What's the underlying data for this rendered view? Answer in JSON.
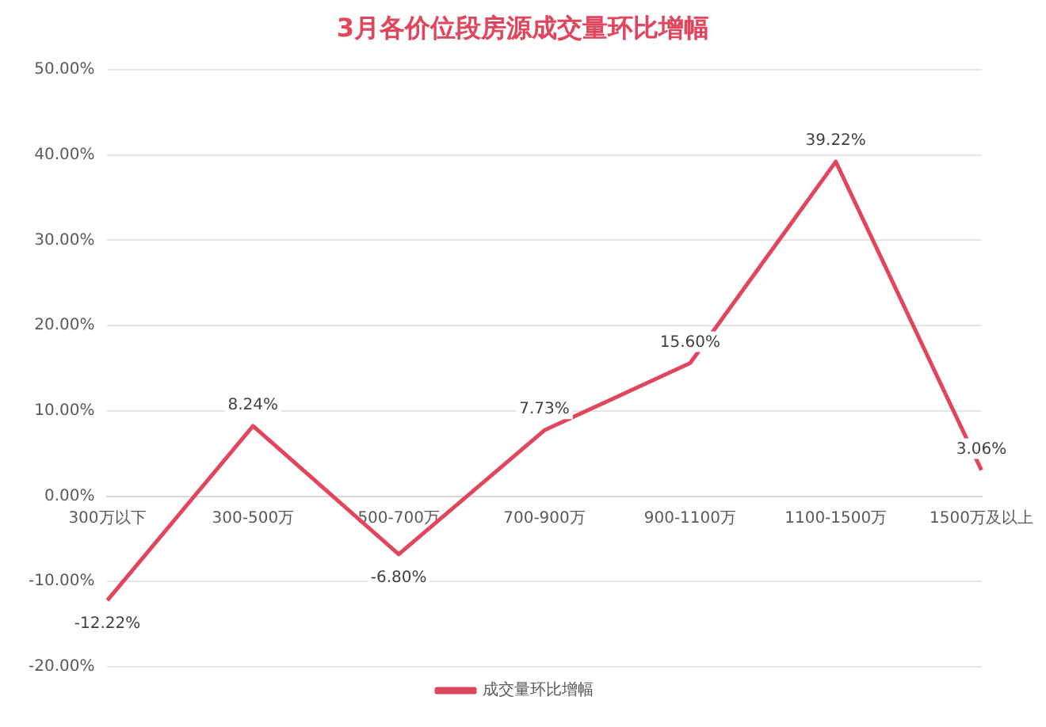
{
  "chart_data": {
    "type": "line",
    "title": "3月各价位段房源成交量环比增幅",
    "categories": [
      "300万以下",
      "300-500万",
      "500-700万",
      "700-900万",
      "900-1100万",
      "1100-1500万",
      "1500万及以上"
    ],
    "series": [
      {
        "name": "成交量环比增幅",
        "color": "#e0475e",
        "values": [
          -12.22,
          8.24,
          -6.8,
          7.73,
          15.6,
          39.22,
          3.06
        ],
        "value_labels": [
          "-12.22%",
          "8.24%",
          "-6.80%",
          "7.73%",
          "15.60%",
          "39.22%",
          "3.06%"
        ]
      }
    ],
    "ylim": [
      -20,
      50
    ],
    "yticks": [
      {
        "value": -20,
        "label": "-20.00%"
      },
      {
        "value": -10,
        "label": "-10.00%"
      },
      {
        "value": 0,
        "label": "0.00%"
      },
      {
        "value": 10,
        "label": "10.00%"
      },
      {
        "value": 20,
        "label": "20.00%"
      },
      {
        "value": 30,
        "label": "30.00%"
      },
      {
        "value": 40,
        "label": "40.00%"
      },
      {
        "value": 50,
        "label": "50.00%"
      }
    ],
    "grid": "y",
    "legend": "bottom",
    "marker": "none",
    "line_style": "solid"
  }
}
